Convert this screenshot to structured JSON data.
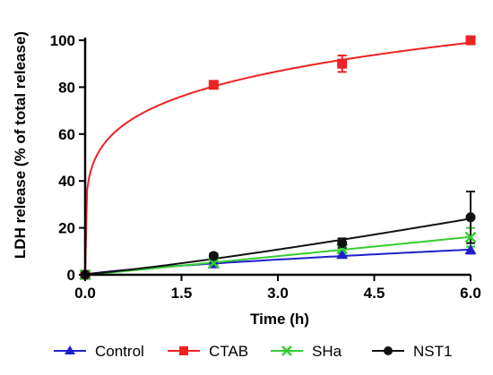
{
  "chart_data": {
    "type": "line",
    "xlabel": "Time (h)",
    "ylabel": "LDH release (% of total release)",
    "xlim": [
      0,
      6
    ],
    "ylim": [
      0,
      100
    ],
    "xticks": [
      "0.0",
      "1.5",
      "3.0",
      "4.5",
      "6.0"
    ],
    "yticks": [
      "0",
      "20",
      "40",
      "60",
      "80",
      "100"
    ],
    "x": [
      0,
      2,
      4,
      6
    ],
    "grid": false,
    "legend_position": "bottom",
    "series": [
      {
        "name": "Control",
        "color": "#1f1fcc",
        "marker": "triangle",
        "values": [
          0,
          4.5,
          8.5,
          10.5
        ],
        "errors": [
          0,
          0.5,
          1,
          1.5
        ]
      },
      {
        "name": "CTAB",
        "color": "#ee2222",
        "marker": "square",
        "values": [
          0,
          81,
          90,
          100
        ],
        "errors": [
          0,
          1.5,
          3.5,
          1.2
        ]
      },
      {
        "name": "SHa",
        "color": "#33cc33",
        "marker": "x",
        "values": [
          0,
          5,
          11,
          16
        ],
        "errors": [
          0,
          0.8,
          1.5,
          4
        ]
      },
      {
        "name": "NST1",
        "color": "#111111",
        "marker": "circle",
        "values": [
          0,
          8,
          13.5,
          24.5
        ],
        "errors": [
          0,
          1,
          2,
          11
        ]
      }
    ]
  }
}
